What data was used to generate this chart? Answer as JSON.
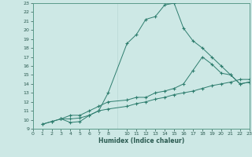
{
  "xlabel": "Humidex (Indice chaleur)",
  "ylabel": "",
  "bg_color": "#cde8e5",
  "grid_color": "#b8d8d4",
  "line_color": "#2e7d6e",
  "ylim": [
    9,
    23
  ],
  "xlim": [
    0,
    23
  ],
  "yticks": [
    9,
    10,
    11,
    12,
    13,
    14,
    15,
    16,
    17,
    18,
    19,
    20,
    21,
    22,
    23
  ],
  "xticks": [
    0,
    1,
    2,
    3,
    4,
    5,
    6,
    7,
    8,
    10,
    11,
    12,
    13,
    14,
    15,
    16,
    17,
    18,
    19,
    20,
    21,
    22,
    23
  ],
  "line1_x": [
    1,
    2,
    3,
    4,
    5,
    6,
    7,
    8,
    10,
    11,
    12,
    13,
    14,
    15,
    16,
    17,
    18,
    19,
    20,
    21,
    22,
    23
  ],
  "line1_y": [
    9.5,
    9.8,
    10.1,
    9.7,
    9.8,
    10.5,
    11.0,
    13.0,
    18.5,
    19.5,
    21.2,
    21.5,
    22.8,
    23.0,
    20.2,
    18.8,
    18.0,
    17.0,
    16.0,
    15.0,
    14.0,
    14.2
  ],
  "line2_x": [
    3,
    4,
    5,
    6,
    7,
    8,
    10,
    11,
    12,
    13,
    14,
    15,
    16,
    17,
    18,
    19,
    20,
    21,
    22,
    23
  ],
  "line2_y": [
    10.1,
    10.5,
    10.5,
    11.0,
    11.5,
    12.0,
    12.2,
    12.5,
    12.5,
    13.0,
    13.2,
    13.5,
    14.0,
    15.5,
    17.0,
    16.2,
    15.2,
    15.0,
    14.0,
    14.2
  ],
  "line3_x": [
    1,
    2,
    3,
    4,
    5,
    6,
    7,
    8,
    10,
    11,
    12,
    13,
    14,
    15,
    16,
    17,
    18,
    19,
    20,
    21,
    22,
    23
  ],
  "line3_y": [
    9.5,
    9.8,
    10.1,
    10.1,
    10.2,
    10.5,
    11.0,
    11.2,
    11.5,
    11.8,
    12.0,
    12.3,
    12.5,
    12.8,
    13.0,
    13.2,
    13.5,
    13.8,
    14.0,
    14.2,
    14.5,
    14.5
  ]
}
